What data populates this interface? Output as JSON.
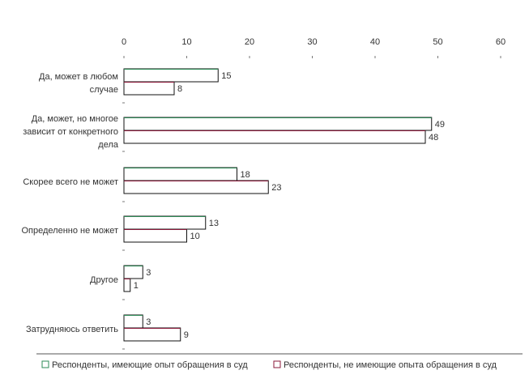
{
  "chart_data": {
    "type": "bar",
    "orientation": "horizontal",
    "xlim": [
      0,
      60
    ],
    "xticks": [
      "0",
      "10",
      "20",
      "30",
      "40",
      "50",
      "60"
    ],
    "xtick_values": [
      0,
      10,
      20,
      30,
      40,
      50,
      60
    ],
    "categories": [
      [
        "Да, может в любом",
        "случае"
      ],
      [
        "Да, может, но многое",
        "зависит от конкретного",
        "дела"
      ],
      [
        "Скорее всего не может"
      ],
      [
        "Определенно не может"
      ],
      [
        "Другое"
      ],
      [
        "Затрудняюсь ответить"
      ]
    ],
    "series": [
      {
        "name": "Респонденты, имеющие опыт обращения в суд",
        "values": [
          15,
          49,
          18,
          13,
          3,
          3
        ],
        "color": "#2e8b57"
      },
      {
        "name": "Респонденты, не имеющие опыта обращения в суд",
        "values": [
          8,
          48,
          23,
          10,
          1,
          9
        ],
        "color": "#8b1a3a"
      }
    ],
    "legend": {
      "position": "bottom"
    },
    "grid": false
  }
}
